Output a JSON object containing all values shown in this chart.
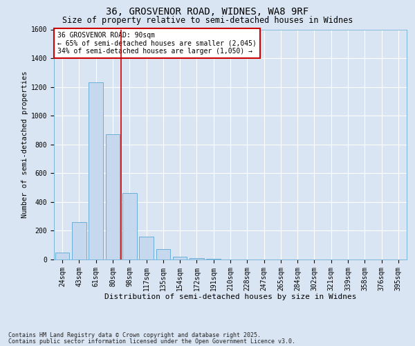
{
  "title_line1": "36, GROSVENOR ROAD, WIDNES, WA8 9RF",
  "title_line2": "Size of property relative to semi-detached houses in Widnes",
  "xlabel": "Distribution of semi-detached houses by size in Widnes",
  "ylabel": "Number of semi-detached properties",
  "footnote1": "Contains HM Land Registry data © Crown copyright and database right 2025.",
  "footnote2": "Contains public sector information licensed under the Open Government Licence v3.0.",
  "annotation_line1": "36 GROSVENOR ROAD: 90sqm",
  "annotation_line2": "← 65% of semi-detached houses are smaller (2,045)",
  "annotation_line3": "34% of semi-detached houses are larger (1,050) →",
  "bin_labels": [
    "24sqm",
    "43sqm",
    "61sqm",
    "80sqm",
    "98sqm",
    "117sqm",
    "135sqm",
    "154sqm",
    "172sqm",
    "191sqm",
    "210sqm",
    "228sqm",
    "247sqm",
    "265sqm",
    "284sqm",
    "302sqm",
    "321sqm",
    "339sqm",
    "358sqm",
    "376sqm",
    "395sqm"
  ],
  "bar_values": [
    50,
    260,
    1230,
    870,
    460,
    160,
    70,
    20,
    10,
    5,
    0,
    0,
    0,
    0,
    0,
    0,
    0,
    0,
    0,
    0,
    0
  ],
  "bar_color": "#c5d8ee",
  "bar_edge_color": "#6aaed6",
  "vline_color": "#cc0000",
  "vline_x_idx": 3.5,
  "ylim": [
    0,
    1600
  ],
  "yticks": [
    0,
    200,
    400,
    600,
    800,
    1000,
    1200,
    1400,
    1600
  ],
  "background_color": "#d9e5f3",
  "plot_bg_color": "#d9e5f3",
  "grid_color": "#ffffff",
  "annotation_box_color": "#ffffff",
  "annotation_box_edge": "#cc0000",
  "title_fontsize": 10,
  "subtitle_fontsize": 8.5,
  "ylabel_fontsize": 7.5,
  "xlabel_fontsize": 8,
  "tick_fontsize": 7,
  "annot_fontsize": 7,
  "footnote_fontsize": 6
}
